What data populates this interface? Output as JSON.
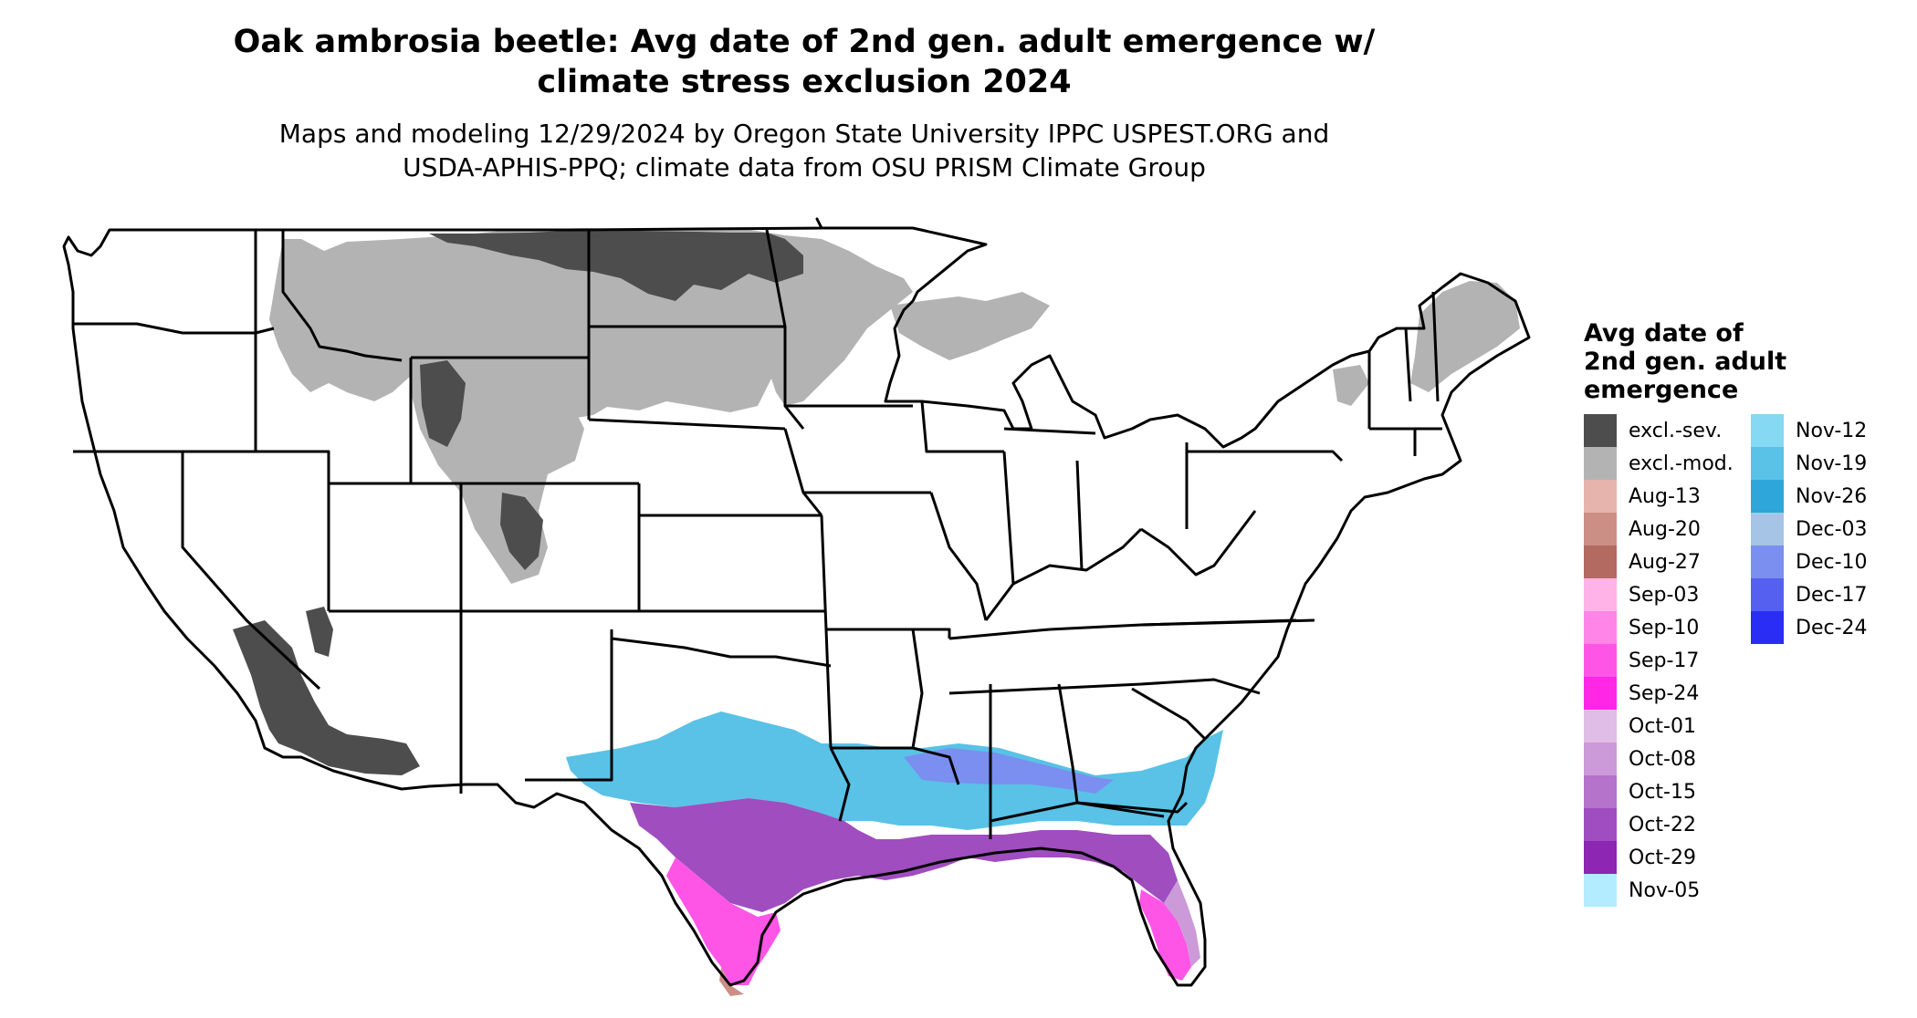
{
  "title_line1": "Oak ambrosia beetle: Avg date of 2nd gen. adult emergence w/",
  "title_line2": "climate stress exclusion 2024",
  "subtitle_line1": "Maps and modeling 12/29/2024 by Oregon State University IPPC USPEST.ORG and",
  "subtitle_line2": "USDA-APHIS-PPQ; climate data from OSU PRISM Climate Group",
  "legend": {
    "title_line1": "Avg date of",
    "title_line2": "2nd gen. adult",
    "title_line3": "emergence",
    "items": [
      {
        "label": "excl.-sev.",
        "color": "#4d4d4d"
      },
      {
        "label": "excl.-mod.",
        "color": "#b3b3b3"
      },
      {
        "label": "Aug-13",
        "color": "#e6b3ad"
      },
      {
        "label": "Aug-20",
        "color": "#cc8f85"
      },
      {
        "label": "Aug-27",
        "color": "#b36b61"
      },
      {
        "label": "Sep-03",
        "color": "#ffb3e6"
      },
      {
        "label": "Sep-10",
        "color": "#ff85e6"
      },
      {
        "label": "Sep-17",
        "color": "#ff55e6"
      },
      {
        "label": "Sep-24",
        "color": "#ff26e6"
      },
      {
        "label": "Oct-01",
        "color": "#e0bde6"
      },
      {
        "label": "Oct-08",
        "color": "#cc99d9"
      },
      {
        "label": "Oct-15",
        "color": "#b573cc"
      },
      {
        "label": "Oct-22",
        "color": "#a04dbf"
      },
      {
        "label": "Oct-29",
        "color": "#8c26b3"
      },
      {
        "label": "Nov-05",
        "color": "#b3ecff"
      },
      {
        "label": "Nov-12",
        "color": "#85d9f2"
      },
      {
        "label": "Nov-19",
        "color": "#59c2e6"
      },
      {
        "label": "Nov-26",
        "color": "#2ea6d9"
      },
      {
        "label": "Dec-03",
        "color": "#a6c4e6"
      },
      {
        "label": "Dec-10",
        "color": "#7a8ff0"
      },
      {
        "label": "Dec-17",
        "color": "#5560f0"
      },
      {
        "label": "Dec-24",
        "color": "#2a2ef5"
      }
    ]
  },
  "colors": {
    "state_border": "#000000",
    "background": "#ffffff"
  }
}
